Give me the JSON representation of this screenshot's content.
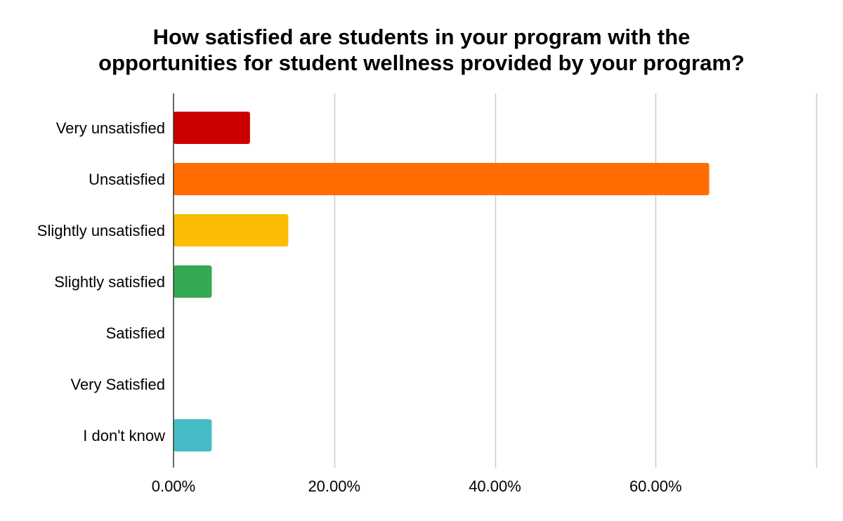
{
  "chart_data": {
    "type": "bar",
    "orientation": "horizontal",
    "title": "How satisfied are students in your program with the\nopportunities for student wellness provided by your program?",
    "xlabel": "",
    "ylabel": "",
    "categories": [
      "Very unsatisfied",
      "Unsatisfied",
      "Slightly unsatisfied",
      "Slightly satisfied",
      "Satisfied",
      "Very Satisfied",
      "I don't know"
    ],
    "values": [
      9.52,
      66.67,
      14.29,
      4.76,
      0,
      0,
      4.76
    ],
    "colors": [
      "#cc0000",
      "#ff6d01",
      "#fbbc04",
      "#34a853",
      "#ea4335",
      "#ab30c4",
      "#46bdc6"
    ],
    "xlim": [
      0,
      80
    ],
    "x_ticks": [
      {
        "value": 0,
        "label": "0.00%"
      },
      {
        "value": 20,
        "label": "20.00%"
      },
      {
        "value": 40,
        "label": "40.00%"
      },
      {
        "value": 60,
        "label": "60.00%"
      }
    ],
    "gridlines": [
      20,
      40,
      60,
      80
    ],
    "grid": true,
    "legend": "none"
  }
}
